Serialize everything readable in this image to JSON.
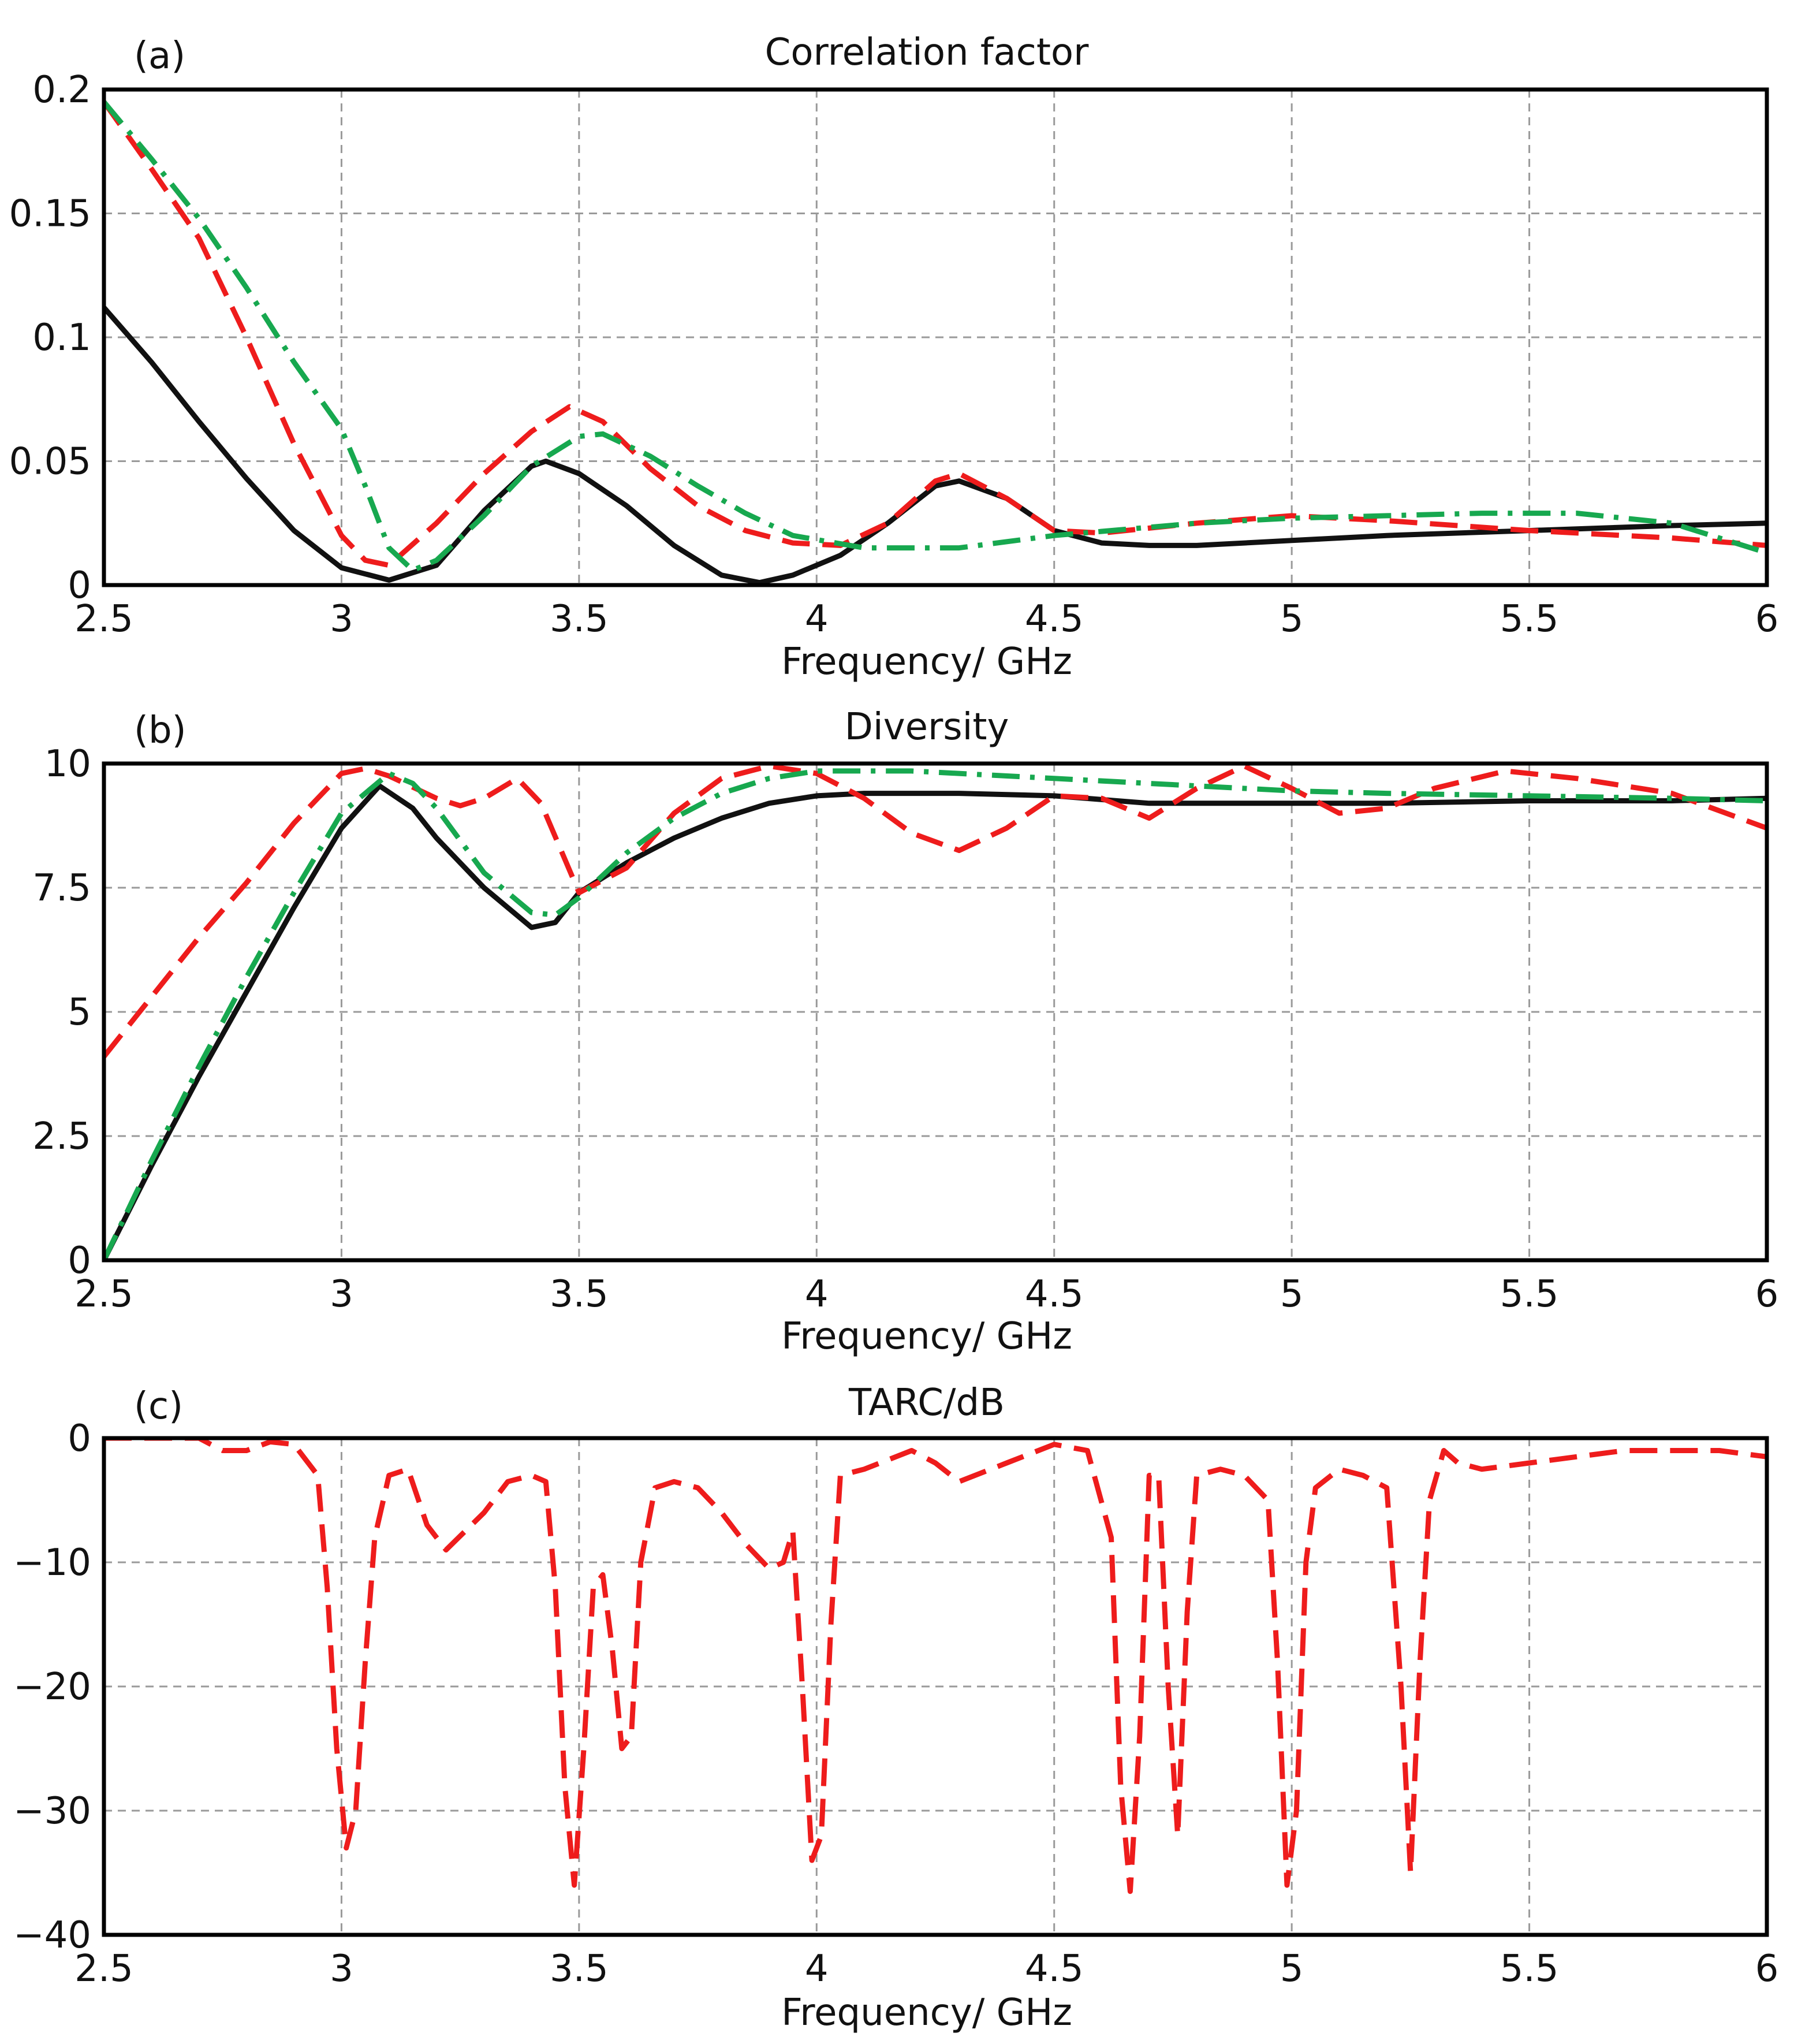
{
  "colors": {
    "black": "#111111",
    "red": "#ee1c1c",
    "green": "#17a84f"
  },
  "chart_data": [
    {
      "type": "line",
      "panel_label": "(a)",
      "title": "Correlation factor",
      "xlabel": "Frequency/ GHz",
      "ylabel": "",
      "xlim": [
        2.5,
        6
      ],
      "ylim": [
        0,
        0.2
      ],
      "xticks": [
        2.5,
        3,
        3.5,
        4,
        4.5,
        5,
        5.5,
        6
      ],
      "xtick_labels": [
        "2.5",
        "3",
        "3.5",
        "4",
        "4.5",
        "5",
        "5.5",
        "6"
      ],
      "yticks": [
        0,
        0.05,
        0.1,
        0.15,
        0.2
      ],
      "ytick_labels": [
        "0",
        "0.05",
        "0.1",
        "0.15",
        "0.2"
      ],
      "grid": true,
      "series": [
        {
          "name": "black-solid",
          "style": "solid",
          "color": "#111111",
          "x": [
            2.5,
            2.6,
            2.7,
            2.8,
            2.9,
            3.0,
            3.1,
            3.2,
            3.3,
            3.4,
            3.43,
            3.5,
            3.6,
            3.7,
            3.8,
            3.88,
            3.95,
            4.05,
            4.15,
            4.25,
            4.3,
            4.4,
            4.5,
            4.6,
            4.7,
            4.8,
            5.0,
            5.2,
            5.5,
            5.8,
            6.0
          ],
          "y": [
            0.112,
            0.09,
            0.066,
            0.043,
            0.022,
            0.007,
            0.002,
            0.008,
            0.03,
            0.048,
            0.05,
            0.045,
            0.032,
            0.016,
            0.004,
            0.001,
            0.004,
            0.012,
            0.025,
            0.04,
            0.042,
            0.035,
            0.022,
            0.017,
            0.016,
            0.016,
            0.018,
            0.02,
            0.022,
            0.024,
            0.025
          ]
        },
        {
          "name": "red-dashed",
          "style": "dashed",
          "color": "#ee1c1c",
          "x": [
            2.5,
            2.6,
            2.7,
            2.8,
            2.9,
            3.0,
            3.05,
            3.1,
            3.2,
            3.3,
            3.4,
            3.48,
            3.55,
            3.65,
            3.75,
            3.85,
            3.95,
            4.05,
            4.15,
            4.25,
            4.3,
            4.4,
            4.5,
            4.6,
            4.8,
            5.0,
            5.2,
            5.5,
            5.8,
            6.0
          ],
          "y": [
            0.195,
            0.168,
            0.14,
            0.1,
            0.057,
            0.02,
            0.01,
            0.008,
            0.025,
            0.045,
            0.062,
            0.072,
            0.066,
            0.047,
            0.032,
            0.022,
            0.017,
            0.016,
            0.025,
            0.042,
            0.045,
            0.035,
            0.022,
            0.021,
            0.025,
            0.028,
            0.026,
            0.022,
            0.019,
            0.016
          ]
        },
        {
          "name": "green-dashdot",
          "style": "dashdot",
          "color": "#17a84f",
          "x": [
            2.5,
            2.6,
            2.7,
            2.8,
            2.9,
            3.0,
            3.05,
            3.1,
            3.15,
            3.2,
            3.3,
            3.4,
            3.5,
            3.55,
            3.65,
            3.75,
            3.85,
            3.95,
            4.1,
            4.3,
            4.5,
            4.8,
            5.0,
            5.2,
            5.4,
            5.6,
            5.8,
            6.0
          ],
          "y": [
            0.195,
            0.172,
            0.148,
            0.12,
            0.09,
            0.063,
            0.04,
            0.015,
            0.006,
            0.01,
            0.028,
            0.048,
            0.06,
            0.061,
            0.052,
            0.04,
            0.029,
            0.02,
            0.015,
            0.015,
            0.02,
            0.025,
            0.027,
            0.028,
            0.029,
            0.029,
            0.025,
            0.013
          ]
        }
      ]
    },
    {
      "type": "line",
      "panel_label": "(b)",
      "title": "Diversity",
      "xlabel": "Frequency/ GHz",
      "ylabel": "",
      "xlim": [
        2.5,
        6
      ],
      "ylim": [
        0,
        10
      ],
      "xticks": [
        2.5,
        3,
        3.5,
        4,
        4.5,
        5,
        5.5,
        6
      ],
      "xtick_labels": [
        "2.5",
        "3",
        "3.5",
        "4",
        "4.5",
        "5",
        "5.5",
        "6"
      ],
      "yticks": [
        0,
        2.5,
        5,
        7.5,
        10
      ],
      "ytick_labels": [
        "0",
        "2.5",
        "5",
        "7.5",
        "10"
      ],
      "grid": true,
      "series": [
        {
          "name": "black-solid",
          "style": "solid",
          "color": "#111111",
          "x": [
            2.5,
            2.6,
            2.7,
            2.8,
            2.9,
            3.0,
            3.08,
            3.15,
            3.2,
            3.3,
            3.4,
            3.45,
            3.5,
            3.6,
            3.7,
            3.8,
            3.9,
            4.0,
            4.1,
            4.3,
            4.5,
            4.7,
            4.9,
            5.2,
            5.5,
            5.8,
            6.0
          ],
          "y": [
            0.0,
            1.9,
            3.7,
            5.4,
            7.1,
            8.7,
            9.55,
            9.1,
            8.5,
            7.5,
            6.7,
            6.8,
            7.4,
            8.0,
            8.5,
            8.9,
            9.2,
            9.35,
            9.4,
            9.4,
            9.35,
            9.2,
            9.2,
            9.2,
            9.25,
            9.25,
            9.3
          ]
        },
        {
          "name": "red-dashed",
          "style": "dashed",
          "color": "#ee1c1c",
          "x": [
            2.5,
            2.6,
            2.7,
            2.8,
            2.9,
            3.0,
            3.05,
            3.1,
            3.2,
            3.25,
            3.3,
            3.37,
            3.42,
            3.5,
            3.6,
            3.7,
            3.8,
            3.9,
            4.0,
            4.1,
            4.2,
            4.3,
            4.4,
            4.5,
            4.6,
            4.7,
            4.8,
            4.9,
            5.0,
            5.1,
            5.2,
            5.3,
            5.45,
            5.6,
            5.8,
            6.0
          ],
          "y": [
            4.1,
            5.3,
            6.5,
            7.6,
            8.8,
            9.8,
            9.9,
            9.75,
            9.3,
            9.15,
            9.3,
            9.7,
            9.2,
            7.4,
            7.9,
            9.0,
            9.7,
            9.95,
            9.8,
            9.3,
            8.6,
            8.25,
            8.7,
            9.35,
            9.3,
            8.9,
            9.5,
            9.95,
            9.5,
            9.0,
            9.1,
            9.5,
            9.85,
            9.7,
            9.4,
            8.7
          ]
        },
        {
          "name": "green-dashdot",
          "style": "dashdot",
          "color": "#17a84f",
          "x": [
            2.5,
            2.6,
            2.7,
            2.8,
            2.9,
            3.0,
            3.1,
            3.15,
            3.2,
            3.3,
            3.4,
            3.45,
            3.5,
            3.6,
            3.7,
            3.8,
            3.9,
            4.0,
            4.2,
            4.5,
            4.8,
            5.0,
            5.2,
            5.5,
            5.8,
            6.0
          ],
          "y": [
            0.0,
            2.0,
            3.9,
            5.7,
            7.4,
            9.0,
            9.8,
            9.6,
            9.1,
            7.8,
            7.0,
            6.95,
            7.3,
            8.2,
            8.9,
            9.4,
            9.7,
            9.85,
            9.85,
            9.7,
            9.55,
            9.45,
            9.4,
            9.35,
            9.3,
            9.25
          ]
        }
      ]
    },
    {
      "type": "line",
      "panel_label": "(c)",
      "title": "TARC/dB",
      "xlabel": "Frequency/ GHz",
      "ylabel": "",
      "xlim": [
        2.5,
        6
      ],
      "ylim": [
        -40,
        0
      ],
      "xticks": [
        2.5,
        3,
        3.5,
        4,
        4.5,
        5,
        5.5,
        6
      ],
      "xtick_labels": [
        "2.5",
        "3",
        "3.5",
        "4",
        "4.5",
        "5",
        "5.5",
        "6"
      ],
      "yticks": [
        -40,
        -30,
        -20,
        -10,
        0
      ],
      "ytick_labels": [
        "−40",
        "−30",
        "−20",
        "−10",
        "0"
      ],
      "grid": true,
      "series": [
        {
          "name": "red-dashed",
          "style": "dashed",
          "color": "#ee1c1c",
          "x": [
            2.5,
            2.6,
            2.7,
            2.75,
            2.8,
            2.85,
            2.9,
            2.95,
            2.97,
            2.99,
            3.01,
            3.03,
            3.05,
            3.07,
            3.1,
            3.14,
            3.18,
            3.22,
            3.3,
            3.35,
            3.4,
            3.43,
            3.45,
            3.47,
            3.49,
            3.51,
            3.53,
            3.55,
            3.57,
            3.59,
            3.61,
            3.63,
            3.66,
            3.7,
            3.75,
            3.8,
            3.85,
            3.9,
            3.93,
            3.95,
            3.97,
            3.99,
            4.01,
            4.03,
            4.05,
            4.1,
            4.2,
            4.25,
            4.3,
            4.4,
            4.5,
            4.57,
            4.62,
            4.64,
            4.66,
            4.68,
            4.7,
            4.72,
            4.74,
            4.76,
            4.78,
            4.8,
            4.85,
            4.9,
            4.95,
            4.97,
            4.99,
            5.01,
            5.03,
            5.05,
            5.1,
            5.15,
            5.2,
            5.23,
            5.25,
            5.27,
            5.29,
            5.32,
            5.35,
            5.4,
            5.5,
            5.7,
            5.9,
            6.0
          ],
          "y": [
            0,
            0,
            0,
            -1,
            -1,
            -0.3,
            -0.5,
            -3,
            -12,
            -25,
            -33,
            -30,
            -18,
            -8,
            -3,
            -2.5,
            -7,
            -9,
            -6,
            -3.5,
            -3,
            -3.5,
            -12,
            -28,
            -36,
            -25,
            -12,
            -11,
            -17,
            -25,
            -24,
            -10,
            -4,
            -3.5,
            -4,
            -6,
            -8.5,
            -10.5,
            -10,
            -7.5,
            -20,
            -34,
            -32,
            -15,
            -3,
            -2.5,
            -1,
            -2,
            -3.5,
            -2,
            -0.5,
            -1,
            -8,
            -28,
            -36.5,
            -24,
            -3,
            -3,
            -20,
            -32,
            -14,
            -3,
            -2.5,
            -3,
            -5,
            -18,
            -36,
            -30,
            -10,
            -4,
            -2.5,
            -3,
            -4,
            -20,
            -35,
            -18,
            -5,
            -1,
            -2,
            -2.5,
            -2,
            -1,
            -1,
            -1.5
          ]
        }
      ]
    }
  ]
}
